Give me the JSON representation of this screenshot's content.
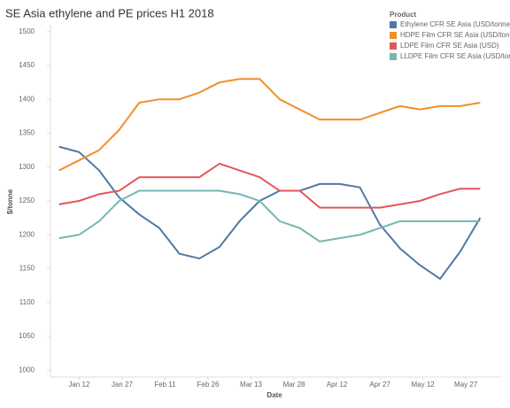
{
  "chart_data": {
    "type": "line",
    "title": "SE Asia ethylene and PE prices H1 2018",
    "x_label": "Date",
    "y_label": "$/tonne",
    "legend_title": "Product",
    "legend": "top-right",
    "x": [
      5,
      12,
      19,
      26,
      33,
      40,
      47,
      54,
      61,
      68,
      75,
      82,
      89,
      96,
      103,
      110,
      117,
      124,
      131,
      138,
      145,
      152
    ],
    "xlim": [
      2,
      159
    ],
    "xticks": [
      {
        "value": 12,
        "label": "Jan 12"
      },
      {
        "value": 27,
        "label": "Jan 27"
      },
      {
        "value": 42,
        "label": "Feb 11"
      },
      {
        "value": 57,
        "label": "Feb 26"
      },
      {
        "value": 72,
        "label": "Mar 13"
      },
      {
        "value": 87,
        "label": "Mar 28"
      },
      {
        "value": 102,
        "label": "Apr 12"
      },
      {
        "value": 117,
        "label": "Apr 27"
      },
      {
        "value": 132,
        "label": "May 12"
      },
      {
        "value": 147,
        "label": "May 27"
      }
    ],
    "ylim": [
      990,
      1510
    ],
    "yticks": [
      1000,
      1050,
      1100,
      1150,
      1200,
      1250,
      1300,
      1350,
      1400,
      1450,
      1500
    ],
    "series": [
      {
        "name": "Ethylene CFR SE Asia  (USD/tonne)",
        "color": "#4e79a7",
        "values": [
          1330,
          1322,
          1295,
          1255,
          1230,
          1210,
          1172,
          1165,
          1182,
          1220,
          1250,
          1265,
          1265,
          1275,
          1275,
          1270,
          1215,
          1180,
          1155,
          1135,
          1175,
          1225
        ]
      },
      {
        "name": "HDPE Film CFR SE Asia (USD/tonne)",
        "color": "#f28e2b",
        "values": [
          1295,
          1310,
          1325,
          1355,
          1395,
          1400,
          1400,
          1410,
          1425,
          1430,
          1430,
          1400,
          1385,
          1370,
          1370,
          1370,
          1380,
          1390,
          1385,
          1390,
          1390,
          1395
        ]
      },
      {
        "name": "LDPE Film CFR SE Asia  (USD)",
        "color": "#e15759",
        "values": [
          1245,
          1250,
          1260,
          1265,
          1285,
          1285,
          1285,
          1285,
          1305,
          1295,
          1285,
          1265,
          1265,
          1240,
          1240,
          1240,
          1240,
          1245,
          1250,
          1260,
          1268,
          1268
        ]
      },
      {
        "name": "LLDPE Film CFR SE Asia (USD/tonne)",
        "color": "#76b7b2",
        "values": [
          1195,
          1200,
          1220,
          1250,
          1265,
          1265,
          1265,
          1265,
          1265,
          1260,
          1250,
          1220,
          1210,
          1190,
          1195,
          1200,
          1210,
          1220,
          1220,
          1220,
          1220,
          1220
        ]
      }
    ]
  }
}
